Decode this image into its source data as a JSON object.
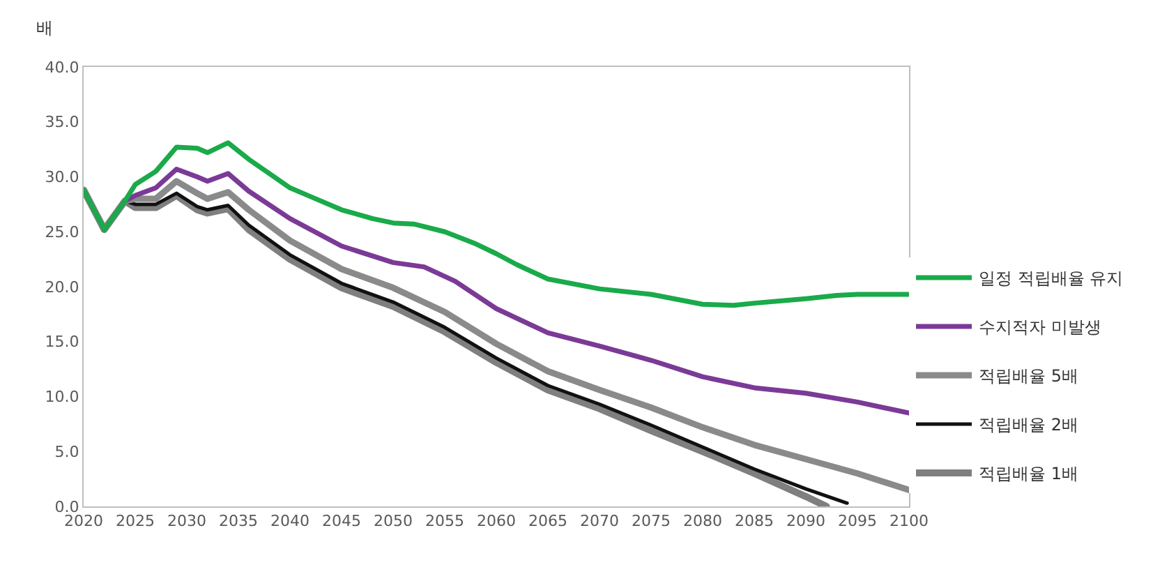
{
  "chart_data": {
    "type": "line",
    "ylabel": "배",
    "xlim": [
      2020,
      2100
    ],
    "xticks": [
      2020,
      2025,
      2030,
      2035,
      2040,
      2045,
      2050,
      2055,
      2060,
      2065,
      2070,
      2075,
      2080,
      2085,
      2090,
      2095,
      2100
    ],
    "ylim": [
      0,
      40
    ],
    "yticks": [
      {
        "value": 0,
        "label": "0.0"
      },
      {
        "value": 5,
        "label": "5.0"
      },
      {
        "value": 10,
        "label": "10.0"
      },
      {
        "value": 15,
        "label": "15.0"
      },
      {
        "value": 20,
        "label": "20.0"
      },
      {
        "value": 25,
        "label": "25.0"
      },
      {
        "value": 30,
        "label": "30.0"
      },
      {
        "value": 35,
        "label": "35.0"
      },
      {
        "value": 40,
        "label": "40.0"
      }
    ],
    "legend": "right",
    "marker": "none",
    "series": [
      {
        "name": "일정 적립배율 유지",
        "color": "#1aaa4a",
        "x": [
          2020,
          2021,
          2022,
          2023,
          2024,
          2025,
          2027,
          2029,
          2031,
          2032,
          2034,
          2036,
          2040,
          2042,
          2045,
          2048,
          2050,
          2052,
          2055,
          2058,
          2060,
          2062,
          2065,
          2070,
          2075,
          2080,
          2083,
          2085,
          2090,
          2093,
          2095,
          2100
        ],
        "values": [
          28.8,
          27.0,
          25.2,
          26.5,
          27.8,
          29.3,
          30.5,
          32.7,
          32.6,
          32.2,
          33.1,
          31.6,
          29.0,
          28.2,
          27.0,
          26.2,
          25.8,
          25.7,
          25.0,
          23.9,
          23.0,
          22.0,
          20.7,
          19.8,
          19.3,
          18.4,
          18.3,
          18.5,
          18.9,
          19.2,
          19.3,
          19.3
        ]
      },
      {
        "name": "수지적자 미발생",
        "color": "#7b3a96",
        "x": [
          2020,
          2021,
          2022,
          2023,
          2024,
          2025,
          2027,
          2029,
          2031,
          2032,
          2034,
          2036,
          2040,
          2045,
          2050,
          2053,
          2056,
          2060,
          2065,
          2070,
          2075,
          2080,
          2085,
          2090,
          2095,
          2100
        ],
        "values": [
          28.8,
          27.0,
          25.2,
          26.5,
          27.8,
          28.3,
          29.0,
          30.7,
          30.0,
          29.6,
          30.3,
          28.7,
          26.2,
          23.7,
          22.2,
          21.8,
          20.5,
          18.0,
          15.8,
          14.6,
          13.3,
          11.8,
          10.8,
          10.3,
          9.5,
          8.5
        ]
      },
      {
        "name": "적립배율 5배",
        "color": "#8a8a8a",
        "x": [
          2020,
          2021,
          2022,
          2023,
          2024,
          2025,
          2027,
          2029,
          2031,
          2032,
          2034,
          2036,
          2040,
          2045,
          2050,
          2055,
          2060,
          2065,
          2070,
          2075,
          2080,
          2085,
          2090,
          2095,
          2100
        ],
        "values": [
          28.8,
          27.0,
          25.2,
          26.5,
          27.8,
          28.0,
          28.0,
          29.6,
          28.5,
          28.0,
          28.6,
          27.0,
          24.2,
          21.6,
          19.9,
          17.7,
          14.8,
          12.3,
          10.6,
          9.0,
          7.2,
          5.6,
          4.3,
          3.0,
          1.5
        ]
      },
      {
        "name": "적립배율 2배",
        "color": "#111111",
        "x": [
          2020,
          2021,
          2022,
          2023,
          2024,
          2025,
          2027,
          2029,
          2031,
          2032,
          2034,
          2036,
          2040,
          2045,
          2050,
          2055,
          2060,
          2065,
          2070,
          2075,
          2080,
          2085,
          2090,
          2094
        ],
        "values": [
          28.8,
          27.0,
          25.2,
          26.5,
          27.8,
          27.5,
          27.5,
          28.5,
          27.3,
          27.0,
          27.4,
          25.6,
          22.9,
          20.3,
          18.6,
          16.3,
          13.5,
          11.0,
          9.3,
          7.4,
          5.4,
          3.4,
          1.6,
          0.3
        ]
      },
      {
        "name": "적립배율 1배",
        "color": "#7f7f7f",
        "x": [
          2020,
          2021,
          2022,
          2023,
          2024,
          2025,
          2027,
          2029,
          2031,
          2032,
          2034,
          2036,
          2040,
          2045,
          2050,
          2055,
          2060,
          2065,
          2070,
          2075,
          2080,
          2085,
          2090,
          2092
        ],
        "values": [
          28.8,
          27.0,
          25.2,
          26.5,
          27.8,
          27.2,
          27.2,
          28.3,
          27.0,
          26.7,
          27.1,
          25.2,
          22.5,
          19.9,
          18.2,
          15.9,
          13.1,
          10.6,
          8.9,
          6.9,
          5.0,
          3.0,
          0.9,
          0.0
        ]
      }
    ]
  }
}
